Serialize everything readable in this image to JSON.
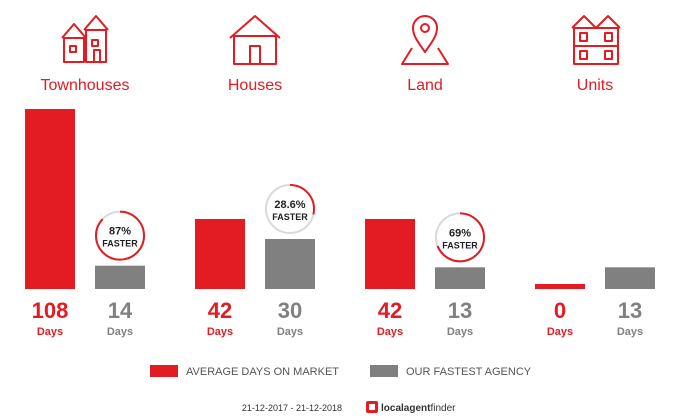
{
  "chart_data": {
    "type": "bar",
    "categories": [
      "Townhouses",
      "Houses",
      "Land",
      "Units"
    ],
    "series": [
      {
        "name": "AVERAGE DAYS ON MARKET",
        "values": [
          108,
          42,
          42,
          0
        ]
      },
      {
        "name": "OUR FASTEST AGENCY",
        "values": [
          14,
          30,
          13,
          13
        ]
      }
    ],
    "faster_percent": [
      "87%",
      "28.6%",
      "69%",
      null
    ],
    "faster_label": "FASTER",
    "unit_label": "Days"
  },
  "colors": {
    "market": "#e31b23",
    "agency": "#808080",
    "ring_bg": "#d9d9d9"
  },
  "icons": [
    "townhouse-icon",
    "house-icon",
    "land-pin-icon",
    "units-building-icon"
  ],
  "footer": {
    "date_range": "21-12-2017 - 21-12-2018",
    "brand_strong": "localagent",
    "brand_light": "finder"
  }
}
